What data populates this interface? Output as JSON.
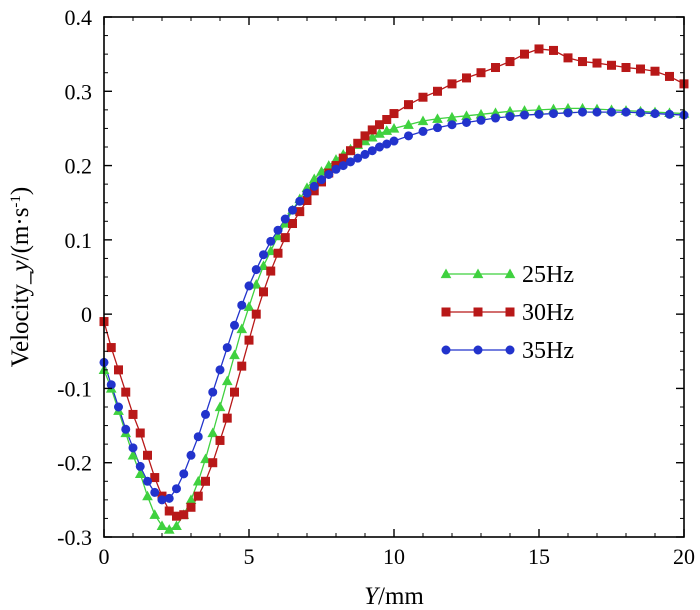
{
  "chart_data": {
    "type": "line",
    "title": "",
    "xlabel_italic": "Y",
    "xlabel_rest": "/mm",
    "ylabel_pre": "Velocity_",
    "ylabel_italic": "y",
    "ylabel_unit": "/(m·s",
    "ylabel_sup": "-1",
    "ylabel_close": ")",
    "xlim": [
      0,
      20
    ],
    "ylim": [
      -0.3,
      0.4
    ],
    "xticks": [
      0,
      5,
      10,
      15,
      20
    ],
    "xtick_labels": [
      "0",
      "5",
      "10",
      "15",
      "20"
    ],
    "yticks": [
      -0.3,
      -0.2,
      -0.1,
      0,
      0.1,
      0.2,
      0.3,
      0.4
    ],
    "ytick_labels": [
      "-0.3",
      "-0.2",
      "-0.1",
      "0",
      "0.1",
      "0.2",
      "0.3",
      "0.4"
    ],
    "grid": false,
    "legend_position": "center-right",
    "series": [
      {
        "name": "25Hz",
        "color": "#3fd13f",
        "marker": "triangle",
        "x": [
          0,
          0.25,
          0.5,
          0.75,
          1,
          1.25,
          1.5,
          1.75,
          2,
          2.25,
          2.5,
          2.75,
          3,
          3.25,
          3.5,
          3.75,
          4,
          4.25,
          4.5,
          4.75,
          5,
          5.25,
          5.5,
          5.75,
          6,
          6.25,
          6.5,
          6.75,
          7,
          7.25,
          7.5,
          7.75,
          8,
          8.25,
          8.5,
          8.75,
          9,
          9.25,
          9.5,
          9.75,
          10,
          10.5,
          11,
          11.5,
          12,
          12.5,
          13,
          13.5,
          14,
          14.5,
          15,
          15.5,
          16,
          16.5,
          17,
          17.5,
          18,
          18.5,
          19,
          19.5,
          20
        ],
        "y": [
          -0.075,
          -0.1,
          -0.13,
          -0.16,
          -0.19,
          -0.215,
          -0.245,
          -0.27,
          -0.285,
          -0.29,
          -0.285,
          -0.27,
          -0.25,
          -0.225,
          -0.195,
          -0.16,
          -0.125,
          -0.09,
          -0.055,
          -0.02,
          0.01,
          0.04,
          0.065,
          0.085,
          0.105,
          0.122,
          0.14,
          0.155,
          0.17,
          0.182,
          0.192,
          0.2,
          0.208,
          0.215,
          0.222,
          0.228,
          0.233,
          0.238,
          0.243,
          0.247,
          0.25,
          0.255,
          0.26,
          0.263,
          0.265,
          0.267,
          0.269,
          0.271,
          0.273,
          0.274,
          0.275,
          0.276,
          0.277,
          0.277,
          0.276,
          0.275,
          0.274,
          0.273,
          0.272,
          0.271,
          0.27
        ]
      },
      {
        "name": "30Hz",
        "color": "#b81818",
        "marker": "square",
        "x": [
          0,
          0.25,
          0.5,
          0.75,
          1,
          1.25,
          1.5,
          1.75,
          2,
          2.25,
          2.5,
          2.75,
          3,
          3.25,
          3.5,
          3.75,
          4,
          4.25,
          4.5,
          4.75,
          5,
          5.25,
          5.5,
          5.75,
          6,
          6.25,
          6.5,
          6.75,
          7,
          7.25,
          7.5,
          7.75,
          8,
          8.25,
          8.5,
          8.75,
          9,
          9.25,
          9.5,
          9.75,
          10,
          10.5,
          11,
          11.5,
          12,
          12.5,
          13,
          13.5,
          14,
          14.5,
          15,
          15.5,
          16,
          16.5,
          17,
          17.5,
          18,
          18.5,
          19,
          19.5,
          20
        ],
        "y": [
          -0.01,
          -0.045,
          -0.075,
          -0.105,
          -0.135,
          -0.16,
          -0.19,
          -0.22,
          -0.245,
          -0.265,
          -0.272,
          -0.27,
          -0.26,
          -0.245,
          -0.225,
          -0.2,
          -0.17,
          -0.14,
          -0.105,
          -0.07,
          -0.035,
          0.0,
          0.03,
          0.058,
          0.082,
          0.103,
          0.122,
          0.138,
          0.153,
          0.166,
          0.178,
          0.19,
          0.2,
          0.21,
          0.22,
          0.23,
          0.24,
          0.248,
          0.255,
          0.262,
          0.27,
          0.282,
          0.292,
          0.3,
          0.31,
          0.318,
          0.325,
          0.332,
          0.34,
          0.35,
          0.357,
          0.355,
          0.345,
          0.34,
          0.338,
          0.335,
          0.332,
          0.33,
          0.327,
          0.32,
          0.31
        ]
      },
      {
        "name": "35Hz",
        "color": "#2233cc",
        "marker": "circle",
        "x": [
          0,
          0.25,
          0.5,
          0.75,
          1,
          1.25,
          1.5,
          1.75,
          2,
          2.25,
          2.5,
          2.75,
          3,
          3.25,
          3.5,
          3.75,
          4,
          4.25,
          4.5,
          4.75,
          5,
          5.25,
          5.5,
          5.75,
          6,
          6.25,
          6.5,
          6.75,
          7,
          7.25,
          7.5,
          7.75,
          8,
          8.25,
          8.5,
          8.75,
          9,
          9.25,
          9.5,
          9.75,
          10,
          10.5,
          11,
          11.5,
          12,
          12.5,
          13,
          13.5,
          14,
          14.5,
          15,
          15.5,
          16,
          16.5,
          17,
          17.5,
          18,
          18.5,
          19,
          19.5,
          20
        ],
        "y": [
          -0.065,
          -0.095,
          -0.125,
          -0.155,
          -0.18,
          -0.205,
          -0.225,
          -0.24,
          -0.25,
          -0.248,
          -0.235,
          -0.215,
          -0.19,
          -0.165,
          -0.135,
          -0.105,
          -0.075,
          -0.045,
          -0.015,
          0.012,
          0.038,
          0.06,
          0.08,
          0.098,
          0.113,
          0.128,
          0.14,
          0.152,
          0.163,
          0.172,
          0.181,
          0.188,
          0.195,
          0.2,
          0.205,
          0.21,
          0.215,
          0.22,
          0.225,
          0.229,
          0.233,
          0.24,
          0.246,
          0.251,
          0.255,
          0.258,
          0.261,
          0.264,
          0.266,
          0.268,
          0.269,
          0.27,
          0.271,
          0.272,
          0.272,
          0.272,
          0.272,
          0.271,
          0.27,
          0.269,
          0.268
        ]
      }
    ]
  }
}
